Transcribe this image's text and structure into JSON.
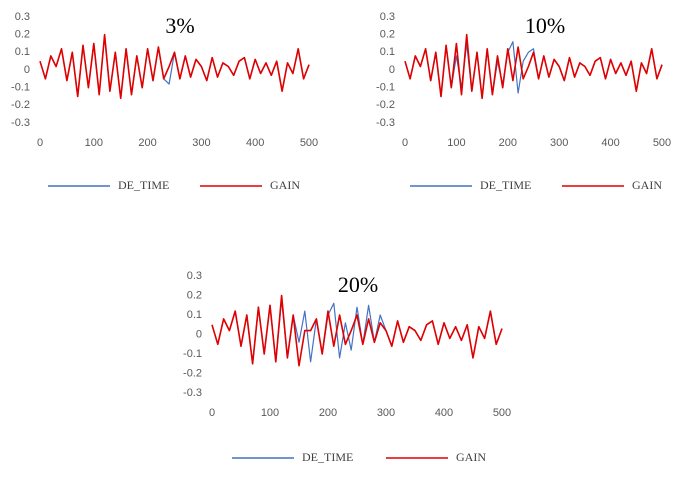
{
  "colors": {
    "de_time": "#4472C4",
    "gain": "#E00000",
    "tick_text": "#595959"
  },
  "chart_data": [
    {
      "type": "line",
      "title": "3%",
      "xlim": [
        0,
        500
      ],
      "ylim": [
        -0.3,
        0.3
      ],
      "x_ticks": [
        "0",
        "100",
        "200",
        "300",
        "400",
        "500"
      ],
      "y_ticks": [
        "0.3",
        "0.2",
        "0.1",
        "0",
        "-0.1",
        "-0.2",
        "-0.3"
      ],
      "grid": false,
      "legend_position": "bottom",
      "series": [
        {
          "name": "DE_TIME",
          "color": "#4472C4",
          "x": [
            0,
            10,
            20,
            30,
            40,
            50,
            60,
            70,
            80,
            90,
            100,
            110,
            120,
            130,
            140,
            150,
            160,
            170,
            180,
            190,
            200,
            210,
            220,
            230,
            240,
            250,
            260,
            270,
            280,
            290,
            300,
            310,
            320,
            330,
            340,
            350,
            360,
            370,
            380,
            390,
            400,
            410,
            420,
            430,
            440,
            450,
            460,
            470,
            480,
            490,
            500
          ],
          "y": [
            0.05,
            -0.05,
            0.08,
            0.02,
            0.12,
            -0.06,
            0.1,
            -0.15,
            0.14,
            -0.1,
            0.15,
            -0.14,
            0.2,
            -0.12,
            0.1,
            -0.16,
            0.12,
            -0.14,
            0.08,
            -0.1,
            0.12,
            -0.06,
            0.13,
            -0.05,
            -0.08,
            0.1,
            -0.05,
            0.08,
            -0.04,
            0.06,
            0.02,
            -0.06,
            0.07,
            -0.04,
            0.04,
            0.02,
            -0.03,
            0.05,
            0.07,
            -0.05,
            0.06,
            -0.02,
            0.04,
            -0.03,
            0.05,
            -0.12,
            0.04,
            -0.02,
            0.12,
            -0.05,
            0.03
          ]
        },
        {
          "name": "GAIN",
          "color": "#E00000",
          "x": [
            0,
            10,
            20,
            30,
            40,
            50,
            60,
            70,
            80,
            90,
            100,
            110,
            120,
            130,
            140,
            150,
            160,
            170,
            180,
            190,
            200,
            210,
            220,
            230,
            240,
            250,
            260,
            270,
            280,
            290,
            300,
            310,
            320,
            330,
            340,
            350,
            360,
            370,
            380,
            390,
            400,
            410,
            420,
            430,
            440,
            450,
            460,
            470,
            480,
            490,
            500
          ],
          "y": [
            0.05,
            -0.05,
            0.08,
            0.02,
            0.12,
            -0.06,
            0.1,
            -0.15,
            0.14,
            -0.1,
            0.15,
            -0.14,
            0.2,
            -0.12,
            0.1,
            -0.16,
            0.12,
            -0.14,
            0.08,
            -0.1,
            0.12,
            -0.06,
            0.13,
            -0.05,
            0.02,
            0.1,
            -0.05,
            0.08,
            -0.04,
            0.06,
            0.02,
            -0.06,
            0.07,
            -0.04,
            0.04,
            0.02,
            -0.03,
            0.05,
            0.07,
            -0.05,
            0.06,
            -0.02,
            0.04,
            -0.03,
            0.05,
            -0.12,
            0.04,
            -0.02,
            0.12,
            -0.05,
            0.03
          ]
        }
      ]
    },
    {
      "type": "line",
      "title": "10%",
      "xlim": [
        0,
        500
      ],
      "ylim": [
        -0.3,
        0.3
      ],
      "x_ticks": [
        "0",
        "100",
        "200",
        "300",
        "400",
        "500"
      ],
      "y_ticks": [
        "0.3",
        "0.2",
        "0.1",
        "0",
        "-0.1",
        "-0.2",
        "-0.3"
      ],
      "grid": false,
      "legend_position": "bottom",
      "series": [
        {
          "name": "DE_TIME",
          "color": "#4472C4",
          "x": [
            0,
            10,
            20,
            30,
            40,
            50,
            60,
            70,
            80,
            90,
            100,
            110,
            120,
            130,
            140,
            150,
            160,
            170,
            180,
            190,
            200,
            210,
            220,
            230,
            240,
            250,
            260,
            270,
            280,
            290,
            300,
            310,
            320,
            330,
            340,
            350,
            360,
            370,
            380,
            390,
            400,
            410,
            420,
            430,
            440,
            450,
            460,
            470,
            480,
            490,
            500
          ],
          "y": [
            0.05,
            -0.05,
            0.08,
            0.02,
            0.12,
            -0.06,
            0.1,
            -0.15,
            0.14,
            -0.1,
            0.08,
            -0.1,
            0.15,
            -0.12,
            0.1,
            -0.16,
            0.12,
            -0.14,
            0.05,
            -0.08,
            0.1,
            0.16,
            -0.13,
            0.05,
            0.1,
            0.12,
            -0.05,
            0.08,
            -0.04,
            0.06,
            0.02,
            -0.06,
            0.07,
            -0.04,
            0.04,
            0.02,
            -0.03,
            0.05,
            0.07,
            -0.05,
            0.06,
            -0.02,
            0.04,
            -0.03,
            0.05,
            -0.12,
            0.04,
            -0.02,
            0.12,
            -0.05,
            0.03
          ]
        },
        {
          "name": "GAIN",
          "color": "#E00000",
          "x": [
            0,
            10,
            20,
            30,
            40,
            50,
            60,
            70,
            80,
            90,
            100,
            110,
            120,
            130,
            140,
            150,
            160,
            170,
            180,
            190,
            200,
            210,
            220,
            230,
            240,
            250,
            260,
            270,
            280,
            290,
            300,
            310,
            320,
            330,
            340,
            350,
            360,
            370,
            380,
            390,
            400,
            410,
            420,
            430,
            440,
            450,
            460,
            470,
            480,
            490,
            500
          ],
          "y": [
            0.05,
            -0.05,
            0.08,
            0.02,
            0.12,
            -0.06,
            0.1,
            -0.15,
            0.14,
            -0.1,
            0.15,
            -0.14,
            0.2,
            -0.12,
            0.1,
            -0.16,
            0.12,
            -0.14,
            0.08,
            -0.1,
            0.12,
            -0.06,
            0.13,
            -0.05,
            0.02,
            0.1,
            -0.05,
            0.08,
            -0.04,
            0.06,
            0.02,
            -0.06,
            0.07,
            -0.04,
            0.04,
            0.02,
            -0.03,
            0.05,
            0.07,
            -0.05,
            0.06,
            -0.02,
            0.04,
            -0.03,
            0.05,
            -0.12,
            0.04,
            -0.02,
            0.12,
            -0.05,
            0.03
          ]
        }
      ]
    },
    {
      "type": "line",
      "title": "20%",
      "xlim": [
        0,
        500
      ],
      "ylim": [
        -0.3,
        0.3
      ],
      "x_ticks": [
        "0",
        "100",
        "200",
        "300",
        "400",
        "500"
      ],
      "y_ticks": [
        "0.3",
        "0.2",
        "0.1",
        "0",
        "-0.1",
        "-0.2",
        "-0.3"
      ],
      "grid": false,
      "legend_position": "bottom",
      "series": [
        {
          "name": "DE_TIME",
          "color": "#4472C4",
          "x": [
            0,
            10,
            20,
            30,
            40,
            50,
            60,
            70,
            80,
            90,
            100,
            110,
            120,
            130,
            140,
            150,
            160,
            170,
            180,
            190,
            200,
            210,
            220,
            230,
            240,
            250,
            260,
            270,
            280,
            290,
            300,
            310,
            320,
            330,
            340,
            350,
            360,
            370,
            380,
            390,
            400,
            410,
            420,
            430,
            440,
            450,
            460,
            470,
            480,
            490,
            500
          ],
          "y": [
            0.05,
            -0.05,
            0.08,
            0.02,
            0.12,
            -0.06,
            0.1,
            -0.15,
            0.14,
            -0.1,
            0.15,
            -0.14,
            0.18,
            -0.12,
            0.1,
            -0.04,
            0.12,
            -0.14,
            0.08,
            -0.1,
            0.1,
            0.16,
            -0.12,
            0.06,
            -0.08,
            0.14,
            -0.05,
            0.15,
            -0.04,
            0.1,
            0.02,
            -0.06,
            0.07,
            -0.04,
            0.04,
            0.02,
            -0.03,
            0.05,
            0.07,
            -0.05,
            0.06,
            -0.02,
            0.04,
            -0.03,
            0.05,
            -0.12,
            0.04,
            -0.02,
            0.12,
            -0.05,
            0.03
          ]
        },
        {
          "name": "GAIN",
          "color": "#E00000",
          "x": [
            0,
            10,
            20,
            30,
            40,
            50,
            60,
            70,
            80,
            90,
            100,
            110,
            120,
            130,
            140,
            150,
            160,
            170,
            180,
            190,
            200,
            210,
            220,
            230,
            240,
            250,
            260,
            270,
            280,
            290,
            300,
            310,
            320,
            330,
            340,
            350,
            360,
            370,
            380,
            390,
            400,
            410,
            420,
            430,
            440,
            450,
            460,
            470,
            480,
            490,
            500
          ],
          "y": [
            0.05,
            -0.05,
            0.08,
            0.02,
            0.12,
            -0.06,
            0.1,
            -0.15,
            0.14,
            -0.1,
            0.15,
            -0.14,
            0.2,
            -0.12,
            0.1,
            -0.16,
            0.02,
            0.02,
            0.08,
            -0.1,
            0.12,
            -0.06,
            0.1,
            -0.05,
            0.02,
            0.1,
            -0.05,
            0.08,
            -0.04,
            0.06,
            0.02,
            -0.06,
            0.07,
            -0.04,
            0.04,
            0.02,
            -0.03,
            0.05,
            0.07,
            -0.05,
            0.06,
            -0.02,
            0.04,
            -0.03,
            0.05,
            -0.12,
            0.04,
            -0.02,
            0.12,
            -0.05,
            0.03
          ]
        }
      ]
    }
  ]
}
